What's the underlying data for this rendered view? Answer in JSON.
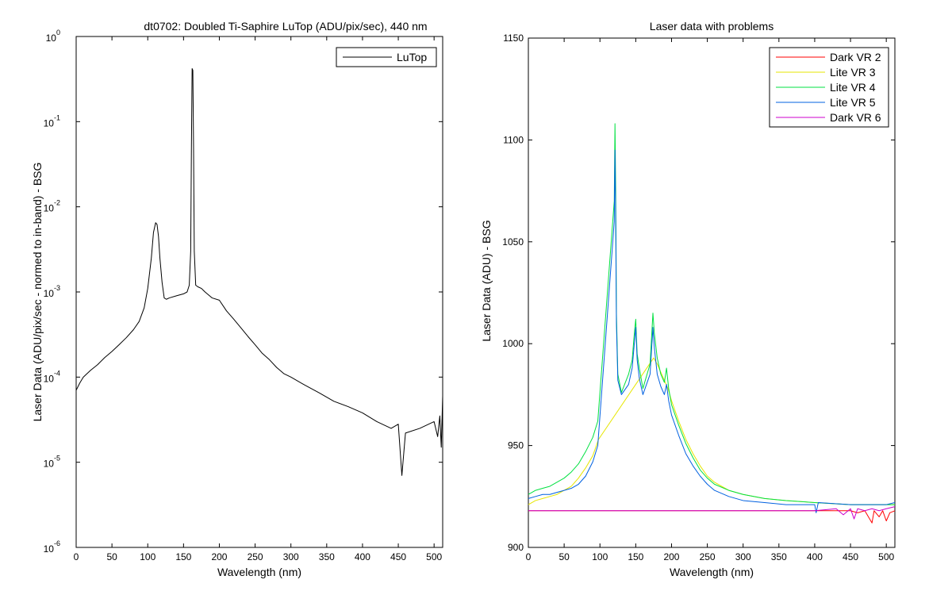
{
  "chart_data": [
    {
      "type": "line",
      "title": "dt0702: Doubled Ti-Saphire LuTop (ADU/pix/sec), 440 nm",
      "xlabel": "Wavelength (nm)",
      "ylabel": "Laser Data (ADU/pix/sec - normed to in-band) - BSG",
      "xlim": [
        0,
        512
      ],
      "ylim": [
        1e-06,
        1
      ],
      "yscale": "log",
      "xticks": [
        "0",
        "50",
        "100",
        "150",
        "200",
        "250",
        "300",
        "350",
        "400",
        "450",
        "500"
      ],
      "yticks": [
        {
          "base": "10",
          "exp": "-6"
        },
        {
          "base": "10",
          "exp": "-5"
        },
        {
          "base": "10",
          "exp": "-4"
        },
        {
          "base": "10",
          "exp": "-3"
        },
        {
          "base": "10",
          "exp": "-2"
        },
        {
          "base": "10",
          "exp": "-1"
        },
        {
          "base": "10",
          "exp": "0"
        }
      ],
      "legend_position": "top-right",
      "grid": false,
      "series": [
        {
          "name": "LuTop",
          "color": "#000000",
          "x": [
            0,
            5,
            10,
            20,
            30,
            40,
            50,
            60,
            70,
            80,
            88,
            95,
            100,
            105,
            108,
            111,
            113,
            115,
            117,
            120,
            123,
            126,
            130,
            140,
            150,
            155,
            158,
            160,
            161,
            162,
            163,
            164,
            165,
            167,
            170,
            175,
            180,
            190,
            200,
            210,
            220,
            230,
            240,
            250,
            260,
            270,
            280,
            290,
            300,
            320,
            340,
            360,
            380,
            400,
            420,
            440,
            450,
            455,
            460,
            480,
            500,
            505,
            508,
            510,
            512
          ],
          "y": [
            7e-05,
            8.5e-05,
            0.0001,
            0.00012,
            0.00014,
            0.00017,
            0.0002,
            0.00024,
            0.00029,
            0.00036,
            0.00045,
            0.00065,
            0.0011,
            0.0025,
            0.005,
            0.0065,
            0.0062,
            0.0045,
            0.0025,
            0.0013,
            0.00085,
            0.00082,
            0.00085,
            0.0009,
            0.00095,
            0.001,
            0.0012,
            0.003,
            0.05,
            0.42,
            0.4,
            0.05,
            0.003,
            0.0012,
            0.00115,
            0.0011,
            0.001,
            0.00085,
            0.0008,
            0.0006,
            0.00048,
            0.00038,
            0.0003,
            0.00024,
            0.00019,
            0.00016,
            0.00013,
            0.00011,
            0.0001,
            8e-05,
            6.5e-05,
            5.2e-05,
            4.5e-05,
            3.8e-05,
            3e-05,
            2.5e-05,
            2.8e-05,
            7e-06,
            2.2e-05,
            2.5e-05,
            3e-05,
            2e-05,
            3.5e-05,
            1.5e-05,
            6e-05
          ]
        }
      ]
    },
    {
      "type": "line",
      "title": "Laser data with problems",
      "xlabel": "Wavelength (nm)",
      "ylabel": "Laser Data (ADU) - BSG",
      "xlim": [
        0,
        512
      ],
      "ylim": [
        900,
        1150
      ],
      "xticks": [
        "0",
        "50",
        "100",
        "150",
        "200",
        "250",
        "300",
        "350",
        "400",
        "450",
        "500"
      ],
      "yticks": [
        "900",
        "950",
        "1000",
        "1050",
        "1100",
        "1150"
      ],
      "legend_position": "top-right",
      "grid": false,
      "series": [
        {
          "name": "Dark VR 2",
          "color": "#ff0000",
          "x": [
            0,
            50,
            100,
            150,
            200,
            250,
            300,
            350,
            400,
            430,
            450,
            460,
            470,
            480,
            483,
            490,
            495,
            500,
            505,
            512
          ],
          "y": [
            918,
            918,
            918,
            918,
            918,
            918,
            918,
            918,
            918,
            918,
            918,
            917,
            918,
            912,
            918,
            915,
            918,
            913,
            917,
            918
          ]
        },
        {
          "name": "Lite VR 3",
          "color": "#e6e600",
          "x": [
            0,
            10,
            20,
            30,
            40,
            50,
            60,
            70,
            80,
            90,
            98,
            175,
            180,
            185,
            190,
            195,
            200,
            210,
            220,
            230,
            240,
            250,
            260,
            280,
            300,
            330,
            360,
            400,
            450,
            500,
            512
          ],
          "y": [
            921,
            923,
            924,
            925,
            926,
            928,
            930,
            934,
            939,
            945,
            953,
            993,
            990,
            986,
            982,
            978,
            972,
            962,
            953,
            946,
            940,
            935,
            932,
            928,
            926,
            924,
            923,
            922,
            921,
            921,
            921
          ]
        },
        {
          "name": "Lite VR 4",
          "color": "#00e040",
          "x": [
            0,
            5,
            10,
            20,
            30,
            40,
            50,
            60,
            70,
            80,
            90,
            97,
            120,
            121,
            122,
            123,
            125,
            130,
            140,
            145,
            148,
            150,
            152,
            155,
            160,
            170,
            174,
            176,
            180,
            185,
            190,
            193,
            196,
            200,
            210,
            220,
            230,
            240,
            250,
            260,
            280,
            300,
            330,
            360,
            400,
            450,
            500,
            512
          ],
          "y": [
            926,
            927,
            928,
            929,
            930,
            932,
            934,
            937,
            941,
            947,
            954,
            962,
            1070,
            1108,
            1075,
            1015,
            985,
            976,
            985,
            992,
            1005,
            1012,
            995,
            988,
            978,
            990,
            1015,
            1005,
            993,
            985,
            981,
            988,
            978,
            970,
            960,
            951,
            944,
            938,
            934,
            931,
            928,
            926,
            924,
            923,
            922,
            921,
            921,
            921
          ]
        },
        {
          "name": "Lite VR 5",
          "color": "#0060e0",
          "x": [
            0,
            10,
            20,
            30,
            40,
            50,
            60,
            70,
            80,
            90,
            97,
            98,
            120,
            121,
            122,
            123,
            125,
            130,
            140,
            145,
            148,
            150,
            152,
            155,
            160,
            170,
            174,
            176,
            180,
            185,
            190,
            193,
            196,
            200,
            210,
            220,
            230,
            240,
            250,
            260,
            280,
            300,
            330,
            360,
            400,
            402,
            405,
            450,
            500,
            512
          ],
          "y": [
            924,
            925,
            926,
            926,
            927,
            928,
            929,
            931,
            935,
            942,
            950,
            955,
            1060,
            1095,
            1060,
            1010,
            982,
            975,
            980,
            988,
            1000,
            1008,
            992,
            983,
            975,
            985,
            1008,
            998,
            985,
            979,
            975,
            980,
            972,
            965,
            955,
            946,
            940,
            935,
            931,
            928,
            925,
            923,
            922,
            921,
            921,
            917,
            922,
            921,
            921,
            922
          ]
        },
        {
          "name": "Dark VR 6",
          "color": "#cc00cc",
          "x": [
            0,
            50,
            100,
            150,
            200,
            250,
            300,
            350,
            400,
            430,
            440,
            450,
            455,
            460,
            470,
            480,
            490,
            500,
            512
          ],
          "y": [
            918,
            918,
            918,
            918,
            918,
            918,
            918,
            918,
            918,
            919,
            916,
            919,
            914,
            919,
            918,
            919,
            918,
            919,
            920
          ]
        }
      ]
    }
  ]
}
